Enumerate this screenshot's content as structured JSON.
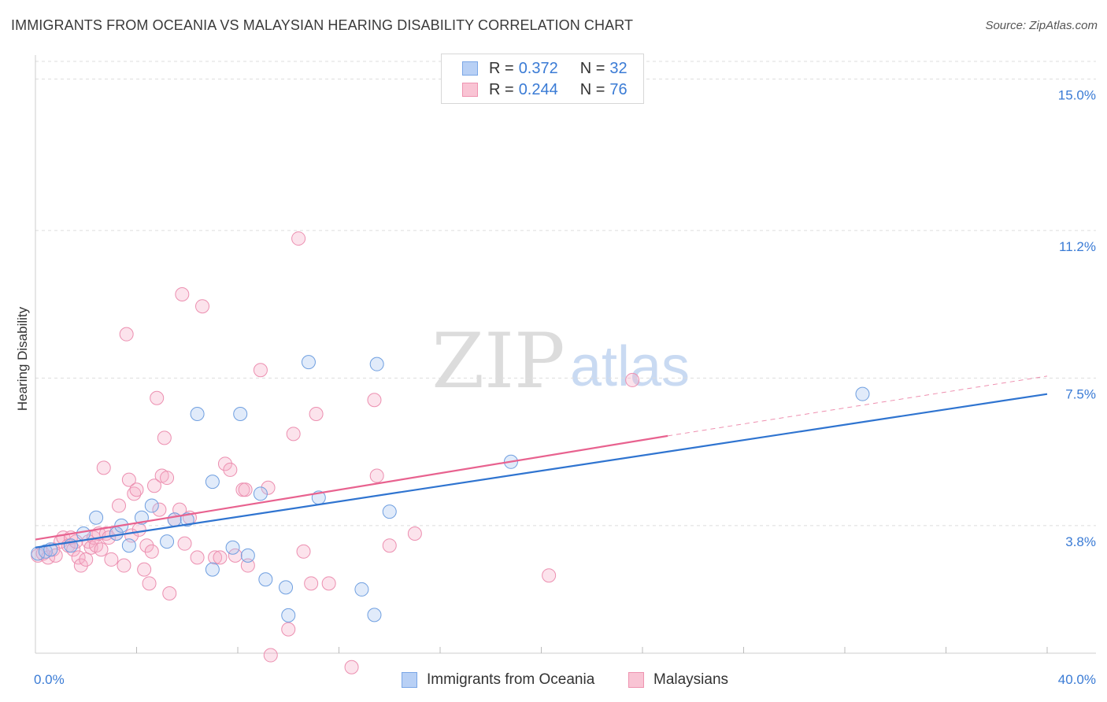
{
  "header": {
    "title": "IMMIGRANTS FROM OCEANIA VS MALAYSIAN HEARING DISABILITY CORRELATION CHART",
    "source": "Source: ZipAtlas.com"
  },
  "watermark": {
    "zip": "ZIP",
    "atlas": "atlas"
  },
  "legend": {
    "series": [
      {
        "r_label": "R =",
        "r_value": "0.372",
        "n_label": "N =",
        "n_value": "32",
        "fill": "#b8d0f5",
        "stroke": "#7aa6e6"
      },
      {
        "r_label": "R =",
        "r_value": "0.244",
        "n_label": "N =",
        "n_value": "76",
        "fill": "#f9c4d4",
        "stroke": "#ee93b0"
      }
    ]
  },
  "bottom_legend": {
    "items": [
      {
        "label": "Immigrants from Oceania",
        "fill": "#b8d0f5",
        "stroke": "#7aa6e6"
      },
      {
        "label": "Malaysians",
        "fill": "#f9c4d4",
        "stroke": "#ee93b0"
      }
    ]
  },
  "colors": {
    "blue_line": "#2f74d0",
    "pink_line": "#e8628f",
    "axis_label": "#3a7bd5",
    "grid": "#dddddd"
  },
  "chart_data": {
    "type": "scatter",
    "title": "IMMIGRANTS FROM OCEANIA VS MALAYSIAN HEARING DISABILITY CORRELATION CHART",
    "xlabel": "",
    "ylabel": "Hearing Disability",
    "xlim": [
      0,
      40
    ],
    "ylim": [
      0.6,
      15.6
    ],
    "x_tick_labels": [
      {
        "value": 0,
        "label": "0.0%"
      },
      {
        "value": 40,
        "label": "40.0%"
      }
    ],
    "x_minor_ticks": [
      4,
      8,
      12,
      16,
      20,
      24,
      28,
      32,
      36,
      40
    ],
    "y_ticks": [
      {
        "value": 3.8,
        "label": "3.8%"
      },
      {
        "value": 7.5,
        "label": "7.5%"
      },
      {
        "value": 11.2,
        "label": "11.2%"
      },
      {
        "value": 15.0,
        "label": "15.0%"
      }
    ],
    "series": [
      {
        "name": "Immigrants from Oceania",
        "color": "blue",
        "r": 0.372,
        "n": 32,
        "trend": {
          "x0": 0,
          "y0": 3.25,
          "x1": 40,
          "y1": 7.1
        },
        "points": [
          [
            0.1,
            3.1
          ],
          [
            0.4,
            3.15
          ],
          [
            0.6,
            3.2
          ],
          [
            1.4,
            3.3
          ],
          [
            1.9,
            3.6
          ],
          [
            2.4,
            4.0
          ],
          [
            3.2,
            3.6
          ],
          [
            3.4,
            3.8
          ],
          [
            3.7,
            3.3
          ],
          [
            4.2,
            4.0
          ],
          [
            4.6,
            4.3
          ],
          [
            5.2,
            3.4
          ],
          [
            5.5,
            3.95
          ],
          [
            6.0,
            3.95
          ],
          [
            6.4,
            6.6
          ],
          [
            7.0,
            4.9
          ],
          [
            7.0,
            2.7
          ],
          [
            7.8,
            3.25
          ],
          [
            8.1,
            6.6
          ],
          [
            8.4,
            3.05
          ],
          [
            8.9,
            4.6
          ],
          [
            9.1,
            2.45
          ],
          [
            9.9,
            2.25
          ],
          [
            10.0,
            1.55
          ],
          [
            10.8,
            7.9
          ],
          [
            11.2,
            4.5
          ],
          [
            12.9,
            2.2
          ],
          [
            13.4,
            1.56
          ],
          [
            13.5,
            7.85
          ],
          [
            14.0,
            4.15
          ],
          [
            18.8,
            5.4
          ],
          [
            32.7,
            7.1
          ]
        ]
      },
      {
        "name": "Malaysians",
        "color": "pink",
        "r": 0.244,
        "n": 76,
        "trend": {
          "x0": 0,
          "y0": 3.45,
          "x1": 25,
          "y1": 6.05
        },
        "trend_extension": {
          "x0": 25,
          "y0": 6.05,
          "x1": 40,
          "y1": 7.55
        },
        "points": [
          [
            0.1,
            3.05
          ],
          [
            0.3,
            3.1
          ],
          [
            0.5,
            3.0
          ],
          [
            0.7,
            3.2
          ],
          [
            0.8,
            3.05
          ],
          [
            1.0,
            3.4
          ],
          [
            1.1,
            3.5
          ],
          [
            1.3,
            3.3
          ],
          [
            1.4,
            3.5
          ],
          [
            1.5,
            3.2
          ],
          [
            1.6,
            3.4
          ],
          [
            1.7,
            3.0
          ],
          [
            1.8,
            2.8
          ],
          [
            2.0,
            2.95
          ],
          [
            2.1,
            3.4
          ],
          [
            2.2,
            3.25
          ],
          [
            2.3,
            3.5
          ],
          [
            2.4,
            3.3
          ],
          [
            2.5,
            3.6
          ],
          [
            2.6,
            3.2
          ],
          [
            2.7,
            5.25
          ],
          [
            2.8,
            3.6
          ],
          [
            2.9,
            3.5
          ],
          [
            3.0,
            2.95
          ],
          [
            3.2,
            3.6
          ],
          [
            3.3,
            4.3
          ],
          [
            3.5,
            2.8
          ],
          [
            3.6,
            8.6
          ],
          [
            3.7,
            4.95
          ],
          [
            3.8,
            3.55
          ],
          [
            3.9,
            4.6
          ],
          [
            4.0,
            4.7
          ],
          [
            4.1,
            3.7
          ],
          [
            4.3,
            2.7
          ],
          [
            4.4,
            3.3
          ],
          [
            4.5,
            2.35
          ],
          [
            4.6,
            3.15
          ],
          [
            4.7,
            4.8
          ],
          [
            4.8,
            7.0
          ],
          [
            4.9,
            4.2
          ],
          [
            5.0,
            5.05
          ],
          [
            5.1,
            6.0
          ],
          [
            5.2,
            5.0
          ],
          [
            5.3,
            2.1
          ],
          [
            5.5,
            3.95
          ],
          [
            5.7,
            4.2
          ],
          [
            5.8,
            9.6
          ],
          [
            5.9,
            3.35
          ],
          [
            6.1,
            4.0
          ],
          [
            6.4,
            3.0
          ],
          [
            6.6,
            9.3
          ],
          [
            7.1,
            3.0
          ],
          [
            7.3,
            3.0
          ],
          [
            7.5,
            5.35
          ],
          [
            7.7,
            5.2
          ],
          [
            7.9,
            3.05
          ],
          [
            8.2,
            4.7
          ],
          [
            8.3,
            4.7
          ],
          [
            8.4,
            2.8
          ],
          [
            8.9,
            7.7
          ],
          [
            9.2,
            4.75
          ],
          [
            9.3,
            0.55
          ],
          [
            10.0,
            1.2
          ],
          [
            10.2,
            6.1
          ],
          [
            10.4,
            11.0
          ],
          [
            10.6,
            3.15
          ],
          [
            10.9,
            2.35
          ],
          [
            11.1,
            6.6
          ],
          [
            11.6,
            2.35
          ],
          [
            12.5,
            0.25
          ],
          [
            13.4,
            6.95
          ],
          [
            13.5,
            5.05
          ],
          [
            14.0,
            3.3
          ],
          [
            15.0,
            3.6
          ],
          [
            20.3,
            2.55
          ],
          [
            23.6,
            7.45
          ]
        ]
      }
    ]
  }
}
